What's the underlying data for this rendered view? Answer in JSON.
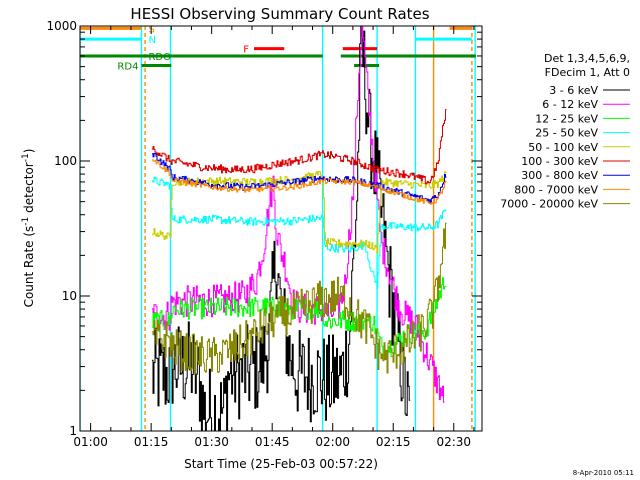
{
  "chart_data": {
    "type": "line",
    "title": "HESSI Observing Summary Count Rates",
    "xlabel": "Start Time (25-Feb-03 00:57:22)",
    "ylabel_main": "Count Rate (s",
    "ylabel_sup": "-1",
    "ylabel_mid": " detector",
    "ylabel_end": ")",
    "yscale": "log",
    "xlim": [
      57.37,
      157.0
    ],
    "ylim": [
      1,
      1000
    ],
    "grid": false,
    "timestamp": "8-Apr-2010 05:11",
    "xticks": [
      {
        "t": 60,
        "label": "01:00"
      },
      {
        "t": 75,
        "label": "01:15"
      },
      {
        "t": 90,
        "label": "01:30"
      },
      {
        "t": 105,
        "label": "01:45"
      },
      {
        "t": 120,
        "label": "02:00"
      },
      {
        "t": 135,
        "label": "02:15"
      },
      {
        "t": 150,
        "label": "02:30"
      }
    ],
    "yticks": [
      {
        "v": 1,
        "label": "1"
      },
      {
        "v": 10,
        "label": "10"
      },
      {
        "v": 100,
        "label": "100"
      },
      {
        "v": 1000,
        "label": "1000"
      }
    ],
    "legend": {
      "position": "right",
      "header": [
        "Det 1,3,4,5,6,9,",
        "FDecim 1, Att 0"
      ],
      "entries": [
        {
          "label": "3 - 6 keV",
          "color": "#000000"
        },
        {
          "label": "6 - 12 keV",
          "color": "#ff00ff"
        },
        {
          "label": "12 - 25 keV",
          "color": "#00ff00"
        },
        {
          "label": "25 - 50 keV",
          "color": "#00ffff"
        },
        {
          "label": "50 - 100 keV",
          "color": "#cccc00"
        },
        {
          "label": "100 - 300 keV",
          "color": "#dd0000"
        },
        {
          "label": "300 - 800 keV",
          "color": "#0000ee"
        },
        {
          "label": "800 - 7000 keV",
          "color": "#ff8800"
        },
        {
          "label": "7000 - 20000 keV",
          "color": "#888800"
        }
      ]
    },
    "flags": [
      {
        "label": "S",
        "color": "#ff8800",
        "level": 960,
        "segments": [
          [
            57.37,
            72.6
          ],
          [
            149.0,
            154.5
          ]
        ]
      },
      {
        "label": "N",
        "color": "#00ffff",
        "level": 800,
        "segments": [
          [
            57.37,
            72.6
          ],
          [
            140.5,
            154.5
          ]
        ]
      },
      {
        "label": "F",
        "color": "#ff0000",
        "level": 680,
        "segments": [
          [
            100.5,
            108.0
          ],
          [
            122.5,
            131.0
          ]
        ]
      },
      {
        "label": "RDO",
        "color": "#008800",
        "level": 600,
        "segments": [
          [
            57.37,
            117.5
          ],
          [
            122.0,
            155.5
          ]
        ]
      },
      {
        "label": "RD4",
        "color": "#008800",
        "level": 510,
        "segments": [
          [
            72.6,
            80.0
          ],
          [
            125.3,
            131.5
          ]
        ]
      }
    ],
    "vlines": [
      {
        "t": 57.37,
        "color": "#00ffff",
        "dash": false
      },
      {
        "t": 72.6,
        "color": "#00ffff",
        "dash": false
      },
      {
        "t": 73.5,
        "color": "#ff8800",
        "dash": true
      },
      {
        "t": 79.8,
        "color": "#00ffff",
        "dash": false
      },
      {
        "t": 117.5,
        "color": "#00ffff",
        "dash": false
      },
      {
        "t": 131.0,
        "color": "#00ffff",
        "dash": false
      },
      {
        "t": 140.5,
        "color": "#00ffff",
        "dash": false
      },
      {
        "t": 145.0,
        "color": "#ff8800",
        "dash": false
      },
      {
        "t": 154.5,
        "color": "#ff8800",
        "dash": true
      },
      {
        "t": 155.3,
        "color": "#00ffff",
        "dash": false
      }
    ],
    "series": [
      {
        "name": "3 - 6 keV",
        "color": "#000000",
        "noise": 0.35,
        "points": [
          [
            75.2,
            2.6
          ],
          [
            79.8,
            2.6
          ],
          [
            80,
            3.0
          ],
          [
            85,
            3.0
          ],
          [
            87,
            2.2
          ],
          [
            88,
            1.4
          ],
          [
            93,
            1.4
          ],
          [
            94,
            2.6
          ],
          [
            100,
            2.8
          ],
          [
            102,
            3.0
          ],
          [
            104,
            4.5
          ],
          [
            106,
            22
          ],
          [
            107,
            8
          ],
          [
            109,
            4
          ],
          [
            111,
            2.6
          ],
          [
            114,
            2.6
          ],
          [
            117.5,
            2.5
          ],
          [
            118,
            2.3
          ],
          [
            122,
            2.5
          ],
          [
            124,
            4.5
          ],
          [
            126,
            60
          ],
          [
            127,
            800
          ],
          [
            128,
            400
          ],
          [
            129,
            160
          ],
          [
            131,
            70
          ],
          [
            133,
            22
          ],
          [
            135,
            8
          ],
          [
            137,
            3
          ],
          [
            139,
            1.2
          ]
        ]
      },
      {
        "name": "6 - 12 keV",
        "color": "#ff00ff",
        "noise": 0.12,
        "points": [
          [
            75.2,
            7.2
          ],
          [
            79.8,
            7.2
          ],
          [
            80,
            9.0
          ],
          [
            93,
            9.3
          ],
          [
            98,
            10
          ],
          [
            101,
            13
          ],
          [
            103,
            25
          ],
          [
            104.5,
            55
          ],
          [
            105.2,
            70
          ],
          [
            106,
            30
          ],
          [
            107,
            22
          ],
          [
            108,
            18
          ],
          [
            110,
            9
          ],
          [
            112,
            8
          ],
          [
            117.5,
            8
          ],
          [
            118,
            7.5
          ],
          [
            121,
            7.5
          ],
          [
            123,
            12
          ],
          [
            125,
            60
          ],
          [
            126.5,
            500
          ],
          [
            127.3,
            950
          ],
          [
            128,
            520
          ],
          [
            129,
            230
          ],
          [
            130,
            110
          ],
          [
            131,
            50
          ],
          [
            132,
            25
          ],
          [
            134,
            15
          ],
          [
            136,
            9
          ],
          [
            138,
            7
          ],
          [
            140,
            6.5
          ],
          [
            147,
            1.9
          ],
          [
            147.5,
            1.5
          ]
        ]
      },
      {
        "name": "12 - 25 keV",
        "color": "#00ff00",
        "noise": 0.08,
        "points": [
          [
            75.2,
            6.5
          ],
          [
            79.8,
            6.5
          ],
          [
            80,
            8.0
          ],
          [
            88,
            8.1
          ],
          [
            100,
            8.3
          ],
          [
            106,
            8.2
          ],
          [
            110,
            8.0
          ],
          [
            117.5,
            8.0
          ],
          [
            118,
            6.5
          ],
          [
            123,
            6.6
          ],
          [
            130,
            6.5
          ],
          [
            132,
            4.2
          ],
          [
            135,
            4.3
          ],
          [
            138,
            5.2
          ],
          [
            143,
            5.5
          ],
          [
            146,
            9.5
          ],
          [
            148,
            14
          ]
        ]
      },
      {
        "name": "25 - 50 keV",
        "color": "#00ffff",
        "noise": 0.03,
        "points": [
          [
            75.2,
            72
          ],
          [
            79.8,
            66
          ],
          [
            80,
            37
          ],
          [
            90,
            37
          ],
          [
            100,
            35.5
          ],
          [
            110,
            36
          ],
          [
            117.5,
            38
          ],
          [
            118,
            23
          ],
          [
            122,
            22.5
          ],
          [
            124,
            22
          ],
          [
            126,
            23
          ],
          [
            128,
            24
          ],
          [
            129,
            18
          ],
          [
            130,
            14
          ],
          [
            131,
            12
          ],
          [
            132,
            33
          ],
          [
            138,
            32.5
          ],
          [
            144,
            32
          ],
          [
            146,
            34
          ],
          [
            148,
            44
          ]
        ]
      },
      {
        "name": "50 - 100 keV",
        "color": "#cccc00",
        "noise": 0.03,
        "points": [
          [
            75.2,
            30
          ],
          [
            79.8,
            27
          ],
          [
            80,
            70
          ],
          [
            90,
            71
          ],
          [
            100,
            70
          ],
          [
            110,
            73
          ],
          [
            117.5,
            80
          ],
          [
            118,
            25
          ],
          [
            122,
            24.5
          ],
          [
            126,
            24.5
          ],
          [
            129,
            24
          ],
          [
            131,
            22
          ],
          [
            132,
            70
          ],
          [
            140,
            67
          ],
          [
            144,
            65
          ],
          [
            146,
            68
          ],
          [
            148,
            80
          ]
        ]
      },
      {
        "name": "100 - 300 keV",
        "color": "#dd0000",
        "noise": 0.03,
        "points": [
          [
            75.2,
            125
          ],
          [
            79.8,
            100
          ],
          [
            80,
            100
          ],
          [
            88,
            90
          ],
          [
            95,
            86
          ],
          [
            100,
            87
          ],
          [
            106,
            95
          ],
          [
            112,
            102
          ],
          [
            117.5,
            112
          ],
          [
            118,
            112
          ],
          [
            125,
            100
          ],
          [
            131,
            86
          ],
          [
            138,
            80
          ],
          [
            144,
            70
          ],
          [
            146,
            95
          ],
          [
            147,
            160
          ],
          [
            148,
            230
          ]
        ]
      },
      {
        "name": "300 - 800 keV",
        "color": "#0000ee",
        "noise": 0.025,
        "points": [
          [
            75.2,
            115
          ],
          [
            79.8,
            85
          ],
          [
            80,
            76
          ],
          [
            90,
            67
          ],
          [
            98,
            64
          ],
          [
            103,
            66
          ],
          [
            110,
            70
          ],
          [
            117.5,
            75
          ],
          [
            118,
            74
          ],
          [
            125,
            72
          ],
          [
            131,
            66
          ],
          [
            138,
            57
          ],
          [
            144,
            51
          ],
          [
            146,
            56
          ],
          [
            148,
            80
          ]
        ]
      },
      {
        "name": "800 - 7000 keV",
        "color": "#ff8800",
        "noise": 0.02,
        "points": [
          [
            75.2,
            105
          ],
          [
            79.8,
            80
          ],
          [
            80,
            72
          ],
          [
            90,
            64
          ],
          [
            98,
            61
          ],
          [
            103,
            62
          ],
          [
            110,
            64
          ],
          [
            117.5,
            71
          ],
          [
            118,
            71
          ],
          [
            125,
            70
          ],
          [
            131,
            64
          ],
          [
            138,
            55
          ],
          [
            144,
            49
          ],
          [
            146,
            52
          ],
          [
            148,
            70
          ]
        ]
      },
      {
        "name": "7000 - 20000 keV",
        "color": "#888800",
        "noise": 0.15,
        "points": [
          [
            75.2,
            4.8
          ],
          [
            79.8,
            4.8
          ],
          [
            80,
            4.2
          ],
          [
            84,
            3.8
          ],
          [
            90,
            3.5
          ],
          [
            95,
            4.0
          ],
          [
            100,
            5.0
          ],
          [
            103,
            6.0
          ],
          [
            106,
            7.0
          ],
          [
            110,
            7.5
          ],
          [
            114,
            8.5
          ],
          [
            117.5,
            9.5
          ],
          [
            119,
            9.5
          ],
          [
            121,
            10
          ],
          [
            124,
            9
          ],
          [
            126,
            7
          ],
          [
            129,
            5.5
          ],
          [
            131,
            4.0
          ],
          [
            133,
            3.5
          ],
          [
            136,
            4.0
          ],
          [
            139,
            4.5
          ],
          [
            142,
            5.5
          ],
          [
            145,
            8
          ],
          [
            146,
            12
          ],
          [
            147,
            20
          ],
          [
            148,
            30
          ]
        ]
      }
    ]
  }
}
